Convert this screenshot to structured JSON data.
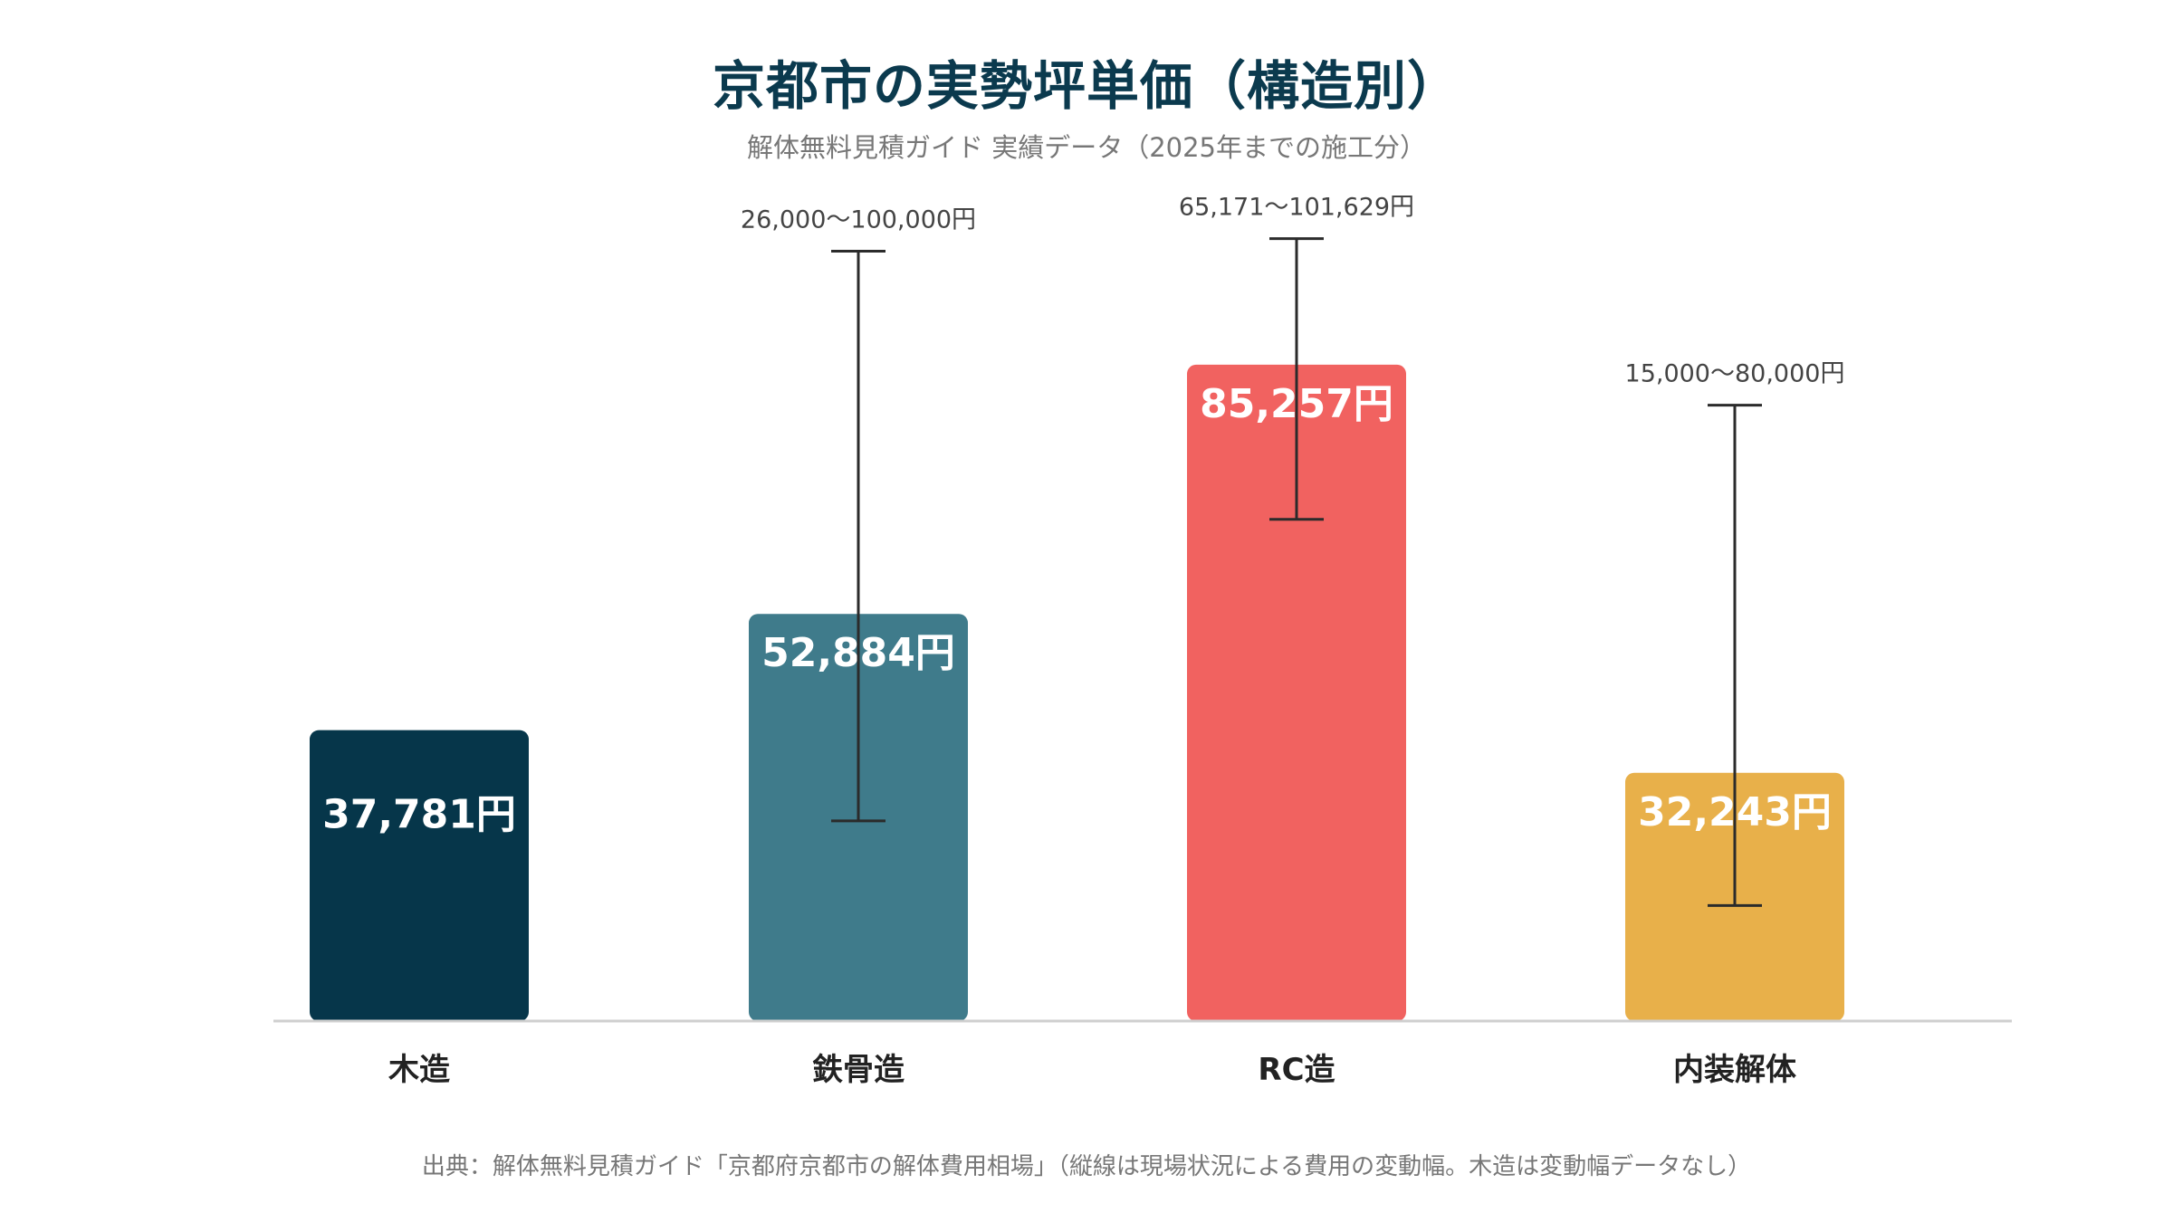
{
  "title": "京都市の実勢坪単価（構造別）",
  "subtitle": "解体無料見積ガイド 実績データ（2025年までの施工分）",
  "footer": "出典：解体無料見積ガイド「京都府京都市の解体費用相場」（縦線は現場状況による費用の変動幅。木造は変動幅データなし）",
  "chart_data": {
    "type": "bar",
    "categories": [
      "木造",
      "鉄骨造",
      "RC造",
      "内装解体"
    ],
    "values": [
      37781,
      52884,
      85257,
      32243
    ],
    "value_labels": [
      "37,781円",
      "52,884円",
      "85,257円",
      "32,243円"
    ],
    "ranges": [
      null,
      [
        26000,
        100000
      ],
      [
        65171,
        101629
      ],
      [
        15000,
        80000
      ]
    ],
    "range_labels": [
      "",
      "26,000〜100,000円",
      "65,171〜101,629円",
      "15,000〜80,000円"
    ],
    "colors": [
      "#06364a",
      "#3f7b8b",
      "#f16260",
      "#e8b04a"
    ],
    "ylim": [
      0,
      105000
    ],
    "grid": false,
    "legend": "none"
  }
}
